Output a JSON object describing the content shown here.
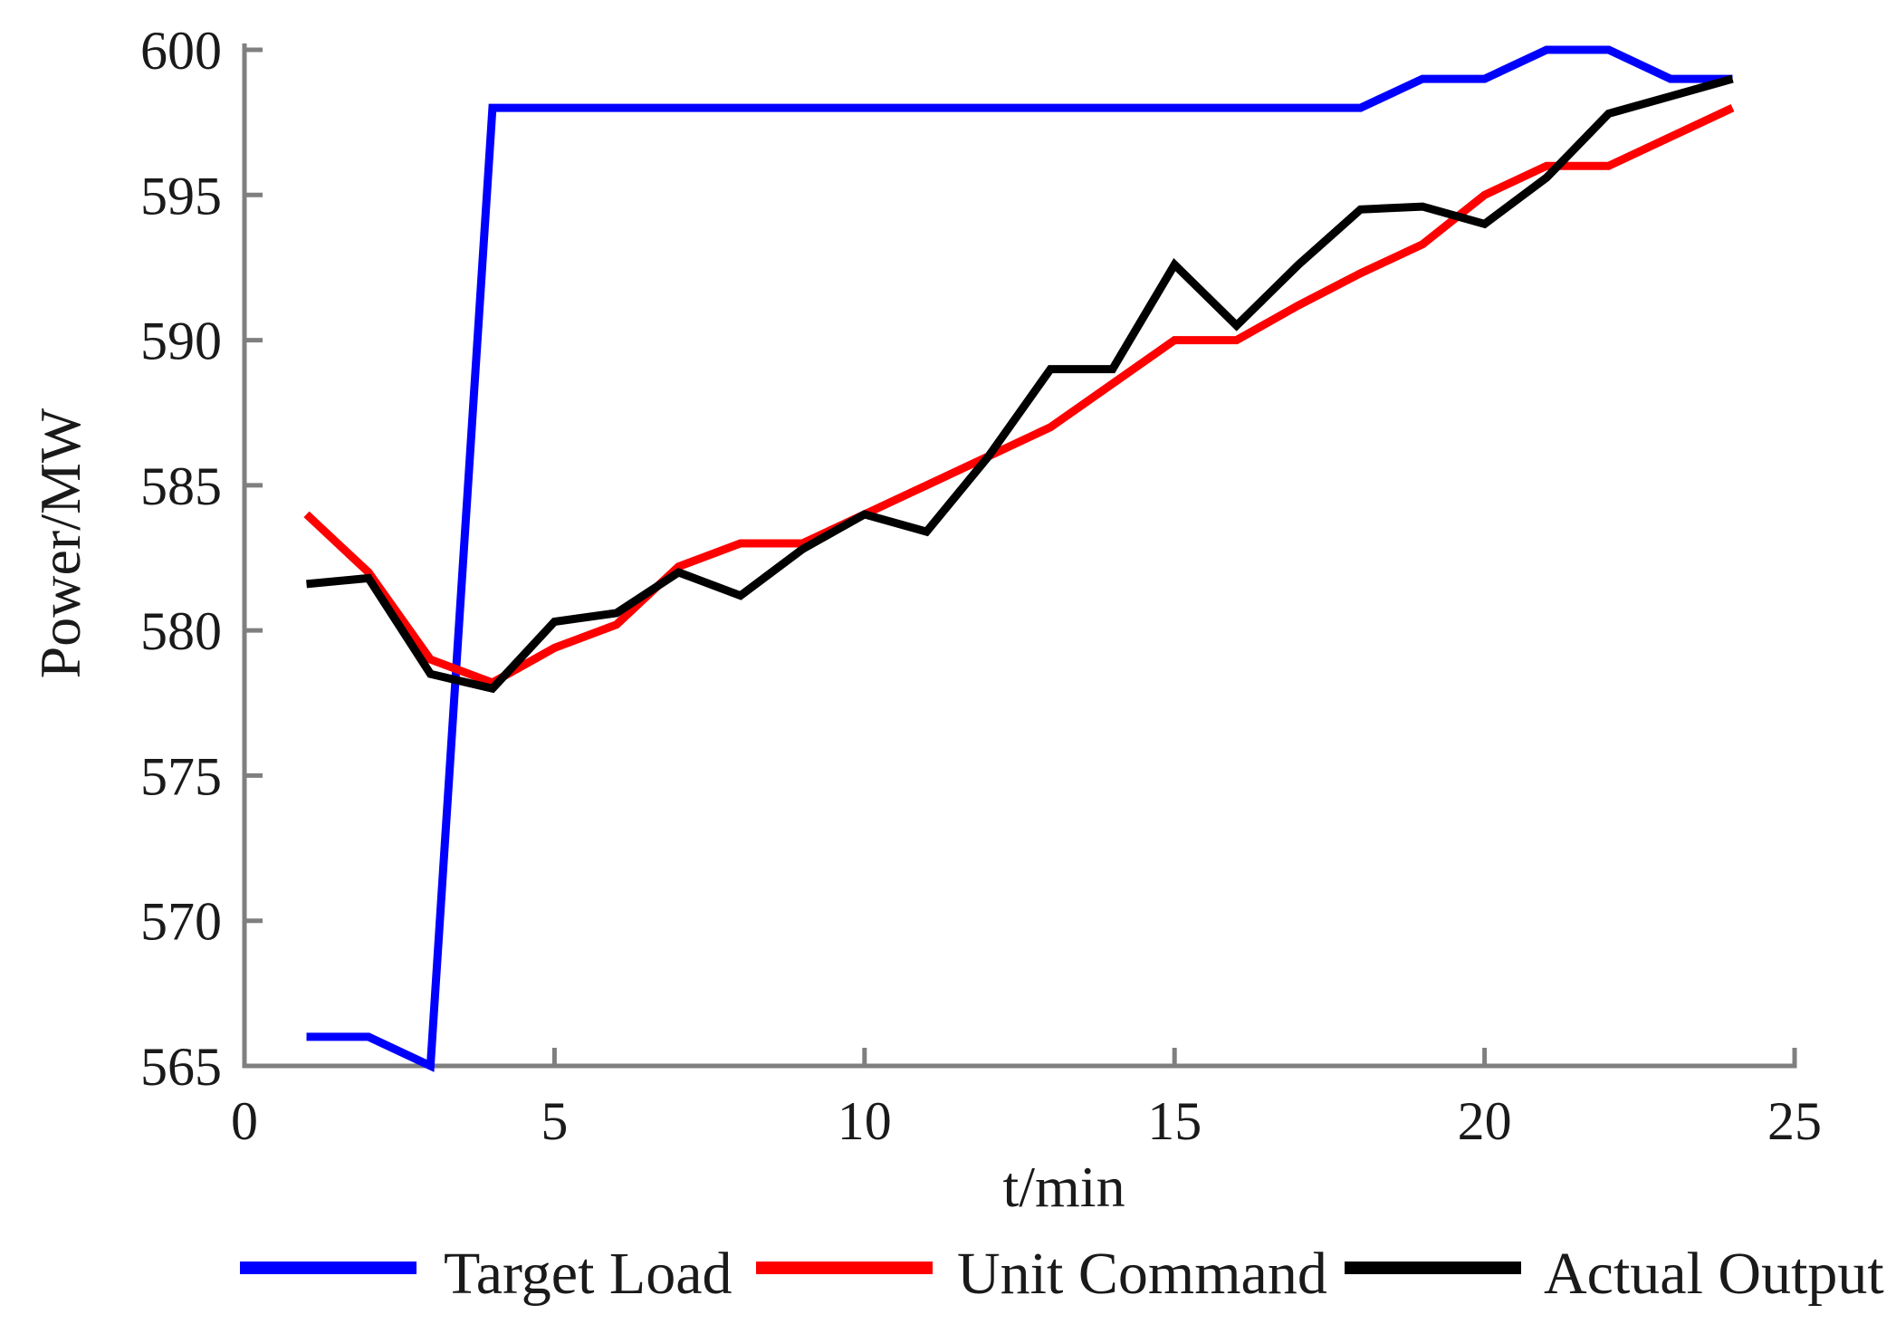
{
  "chart_data": {
    "type": "line",
    "title": "",
    "xlabel": "t/min",
    "ylabel": "Power/MW",
    "xlim": [
      0,
      25
    ],
    "ylim": [
      565,
      600
    ],
    "xticks": [
      0,
      5,
      10,
      15,
      20,
      25
    ],
    "yticks": [
      565,
      570,
      575,
      580,
      585,
      590,
      595,
      600
    ],
    "grid": false,
    "legend_position": "bottom",
    "axis_color": "#7f7f7f",
    "tick_label_color": "#1a1a1a",
    "x": [
      1,
      2,
      3,
      4,
      5,
      6,
      7,
      8,
      9,
      10,
      11,
      12,
      13,
      14,
      15,
      16,
      17,
      18,
      19,
      20,
      21,
      22,
      23,
      24
    ],
    "series": [
      {
        "name": "Target Load",
        "color": "#0000ff",
        "values": [
          566,
          566,
          565,
          598,
          598,
          598,
          598,
          598,
          598,
          598,
          598,
          598,
          598,
          598,
          598,
          598,
          598,
          598,
          599,
          599,
          600,
          600,
          599,
          599
        ]
      },
      {
        "name": "Unit Command",
        "color": "#ff0000",
        "values": [
          584,
          582,
          579,
          578.2,
          579.4,
          580.2,
          582.2,
          583,
          583,
          584,
          585,
          586,
          587,
          588.5,
          590,
          590,
          591.2,
          592.3,
          593.3,
          595,
          596,
          596,
          597,
          598
        ]
      },
      {
        "name": "Actual Output",
        "color": "#000000",
        "values": [
          581.6,
          581.8,
          578.5,
          578,
          580.3,
          580.6,
          582,
          581.2,
          582.8,
          584,
          583.4,
          586,
          589,
          589,
          592.6,
          590.5,
          592.6,
          594.5,
          594.6,
          594,
          595.6,
          597.8,
          598.4,
          599
        ]
      }
    ]
  }
}
